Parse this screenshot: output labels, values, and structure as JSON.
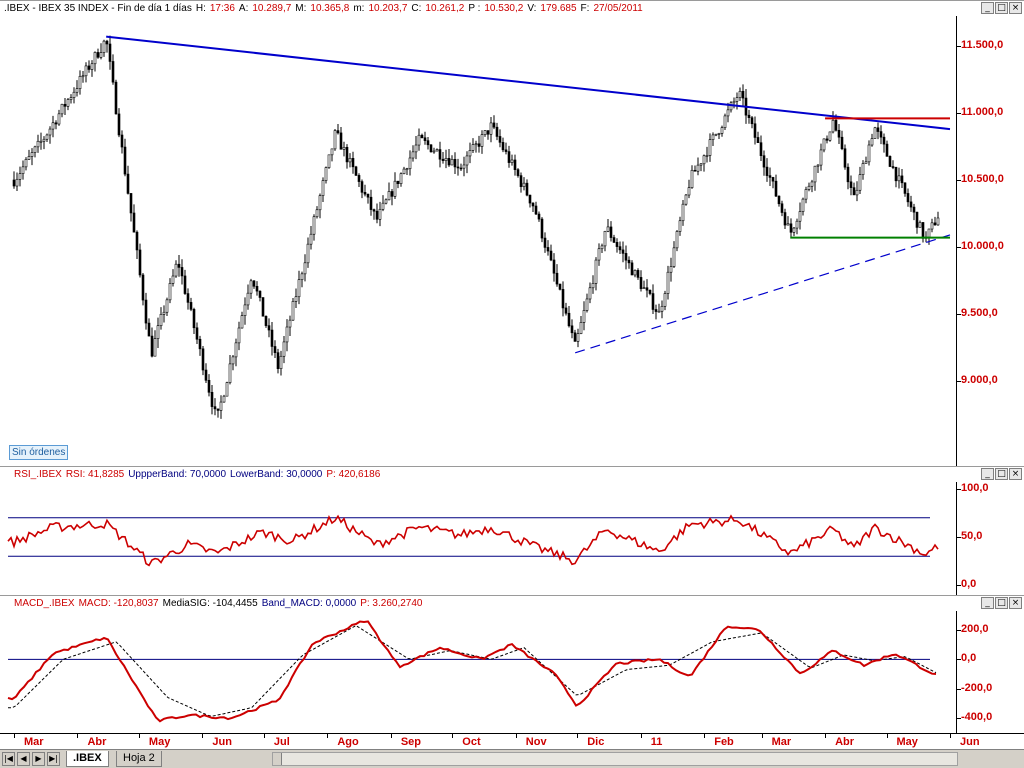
{
  "main": {
    "title_parts": [
      ".IBEX - IBEX 35 INDEX - Fin de día 1 días",
      "H:",
      "17:36",
      "A:",
      "10.289,7",
      "M:",
      "10.365,8",
      "m:",
      "10.203,7",
      "C:",
      "10.261,2",
      "P :",
      "10.530,2",
      "V:",
      "179.685",
      "F:",
      "27/05/2011"
    ],
    "y_labels": [
      "11.500,0",
      "11.000,0",
      "10.500,0",
      "10.000,0",
      "9.500,0",
      "9.000,0"
    ],
    "badge": "Sin órdenes"
  },
  "rsi": {
    "title_parts": [
      "RSI_.IBEX",
      "RSI: 41,8285",
      "UppperBand: 70,0000",
      "LowerBand: 30,0000",
      "P: 420,6186"
    ],
    "y_labels": [
      "100,0",
      "50,0",
      "0,0"
    ]
  },
  "macd": {
    "title_parts": [
      "MACD_.IBEX",
      "MACD: -120,8037",
      "MediaSIG: -104,4455",
      "Band_MACD: 0,0000",
      "P: 3.260,2740"
    ],
    "y_labels": [
      "200,0",
      "0,0",
      "-200,0",
      "-400,0"
    ]
  },
  "xaxis": {
    "labels": [
      "Mar",
      "Abr",
      "May",
      "Jun",
      "Jul",
      "Ago",
      "Sep",
      "Oct",
      "Nov",
      "Dic",
      "11",
      "Feb",
      "Mar",
      "Abr",
      "May",
      "Jun"
    ]
  },
  "window_buttons": [
    "_",
    "□",
    "×"
  ],
  "sheets": {
    "tabs": [
      ".IBEX",
      "Hoja 2"
    ],
    "nav": [
      "|◀",
      "◀",
      "▶",
      "▶|"
    ]
  },
  "colors": {
    "price": "#000000",
    "rsi": "#cc0000",
    "macd": "#cc0000",
    "signal": "#000000",
    "band": "#000080",
    "trend_top": "#0000cc",
    "resistance": "#cc0000",
    "support": "#008000",
    "axis_text": "#cc0000"
  },
  "chart_data": [
    {
      "type": "candlestick",
      "title": ".IBEX - IBEX 35 INDEX",
      "x_range": [
        "2010-03-01",
        "2011-06-01"
      ],
      "ylim": [
        8500,
        11800
      ],
      "key_points": [
        {
          "date": "2010-03-01",
          "close": 10500
        },
        {
          "date": "2010-03-15",
          "close": 10800
        },
        {
          "date": "2010-04-15",
          "close": 11550
        },
        {
          "date": "2010-05-07",
          "close": 9200
        },
        {
          "date": "2010-05-20",
          "close": 9900
        },
        {
          "date": "2010-06-08",
          "close": 8700
        },
        {
          "date": "2010-06-25",
          "close": 9800
        },
        {
          "date": "2010-07-08",
          "close": 9100
        },
        {
          "date": "2010-08-05",
          "close": 10850
        },
        {
          "date": "2010-08-25",
          "close": 10200
        },
        {
          "date": "2010-09-15",
          "close": 10800
        },
        {
          "date": "2010-10-05",
          "close": 10600
        },
        {
          "date": "2010-10-20",
          "close": 10900
        },
        {
          "date": "2010-11-10",
          "close": 10300
        },
        {
          "date": "2010-11-30",
          "close": 9250
        },
        {
          "date": "2010-12-15",
          "close": 10150
        },
        {
          "date": "2011-01-10",
          "close": 9500
        },
        {
          "date": "2011-01-25",
          "close": 10500
        },
        {
          "date": "2011-02-18",
          "close": 11150
        },
        {
          "date": "2011-03-15",
          "close": 10100
        },
        {
          "date": "2011-04-05",
          "close": 10950
        },
        {
          "date": "2011-04-15",
          "close": 10350
        },
        {
          "date": "2011-04-25",
          "close": 10900
        },
        {
          "date": "2011-05-20",
          "close": 10050
        },
        {
          "date": "2011-05-27",
          "close": 10261.2
        }
      ],
      "lines": [
        {
          "kind": "trend",
          "from": [
            "2010-04-15",
            11570
          ],
          "to": [
            "2011-06-01",
            10880
          ]
        },
        {
          "kind": "trend-dashed",
          "from": [
            "2010-11-30",
            9210
          ],
          "to": [
            "2011-06-01",
            10090
          ]
        },
        {
          "kind": "resistance",
          "from": [
            "2011-04-01",
            10960
          ],
          "to": [
            "2011-06-01",
            10960
          ]
        },
        {
          "kind": "support",
          "from": [
            "2011-03-15",
            10070
          ],
          "to": [
            "2011-06-01",
            10070
          ]
        }
      ]
    },
    {
      "type": "line",
      "title": "RSI_.IBEX",
      "ylim": [
        0,
        100
      ],
      "bands": [
        70,
        30
      ],
      "series": [
        {
          "name": "RSI",
          "points": [
            [
              "2010-03-01",
              45
            ],
            [
              "2010-03-20",
              60
            ],
            [
              "2010-04-15",
              64
            ],
            [
              "2010-05-07",
              22
            ],
            [
              "2010-05-25",
              42
            ],
            [
              "2010-06-08",
              33
            ],
            [
              "2010-06-30",
              55
            ],
            [
              "2010-07-15",
              46
            ],
            [
              "2010-08-05",
              70
            ],
            [
              "2010-08-25",
              42
            ],
            [
              "2010-09-15",
              60
            ],
            [
              "2010-10-05",
              52
            ],
            [
              "2010-10-20",
              60
            ],
            [
              "2010-11-10",
              40
            ],
            [
              "2010-11-30",
              25
            ],
            [
              "2010-12-15",
              58
            ],
            [
              "2011-01-10",
              35
            ],
            [
              "2011-01-25",
              63
            ],
            [
              "2011-02-18",
              68
            ],
            [
              "2011-03-15",
              33
            ],
            [
              "2011-04-05",
              58
            ],
            [
              "2011-04-15",
              38
            ],
            [
              "2011-04-25",
              60
            ],
            [
              "2011-05-20",
              32
            ],
            [
              "2011-05-27",
              41.8
            ]
          ]
        }
      ]
    },
    {
      "type": "line",
      "title": "MACD_.IBEX",
      "ylim": [
        -450,
        250
      ],
      "band": 0,
      "series": [
        {
          "name": "MACD",
          "points": [
            [
              "2010-03-01",
              -270
            ],
            [
              "2010-03-20",
              40
            ],
            [
              "2010-04-15",
              150
            ],
            [
              "2010-05-10",
              -420
            ],
            [
              "2010-05-25",
              -380
            ],
            [
              "2010-06-15",
              -400
            ],
            [
              "2010-07-08",
              -280
            ],
            [
              "2010-07-25",
              110
            ],
            [
              "2010-08-20",
              270
            ],
            [
              "2010-09-05",
              -50
            ],
            [
              "2010-09-25",
              80
            ],
            [
              "2010-10-15",
              0
            ],
            [
              "2010-10-30",
              100
            ],
            [
              "2010-11-20",
              -100
            ],
            [
              "2010-12-01",
              -320
            ],
            [
              "2010-12-20",
              -30
            ],
            [
              "2011-01-10",
              0
            ],
            [
              "2011-01-25",
              -120
            ],
            [
              "2011-02-12",
              230
            ],
            [
              "2011-02-28",
              200
            ],
            [
              "2011-03-20",
              -100
            ],
            [
              "2011-04-05",
              60
            ],
            [
              "2011-04-20",
              -40
            ],
            [
              "2011-05-05",
              40
            ],
            [
              "2011-05-27",
              -120.8
            ]
          ]
        },
        {
          "name": "MediaSIG",
          "points": [
            [
              "2010-03-01",
              -330
            ],
            [
              "2010-03-25",
              0
            ],
            [
              "2010-04-20",
              120
            ],
            [
              "2010-05-15",
              -260
            ],
            [
              "2010-06-05",
              -390
            ],
            [
              "2010-06-25",
              -330
            ],
            [
              "2010-07-20",
              30
            ],
            [
              "2010-08-15",
              230
            ],
            [
              "2010-09-10",
              0
            ],
            [
              "2010-09-30",
              60
            ],
            [
              "2010-10-20",
              0
            ],
            [
              "2010-11-05",
              80
            ],
            [
              "2010-12-01",
              -250
            ],
            [
              "2010-12-25",
              -70
            ],
            [
              "2011-01-15",
              -40
            ],
            [
              "2011-02-05",
              120
            ],
            [
              "2011-03-01",
              180
            ],
            [
              "2011-03-25",
              -60
            ],
            [
              "2011-04-10",
              30
            ],
            [
              "2011-04-25",
              -10
            ],
            [
              "2011-05-10",
              20
            ],
            [
              "2011-05-27",
              -104.4
            ]
          ]
        }
      ]
    }
  ]
}
